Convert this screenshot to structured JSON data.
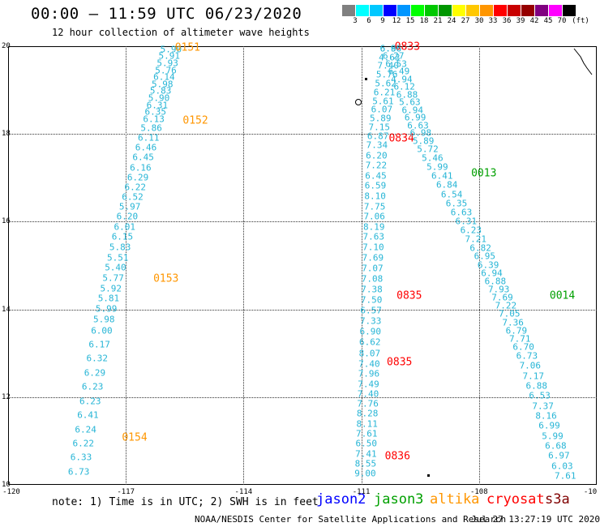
{
  "title": "00:00 – 11:59 UTC 06/23/2020",
  "subtitle": "12 hour collection of altimeter wave heights",
  "legend": {
    "unit": "(ft)",
    "colors": [
      "#808080",
      "#00ffff",
      "#00c8ff",
      "#0000ff",
      "#0096ff",
      "#00ff00",
      "#00c800",
      "#009600",
      "#ffff00",
      "#ffc800",
      "#ff9600",
      "#ff0000",
      "#c80000",
      "#960000",
      "#800080",
      "#ff00ff",
      "#000000"
    ],
    "labels": [
      "3",
      "6",
      "9",
      "12",
      "15",
      "18",
      "21",
      "24",
      "27",
      "30",
      "33",
      "36",
      "39",
      "42",
      "45",
      "70"
    ]
  },
  "y_ticks": [
    "20",
    "18",
    "16",
    "14",
    "12",
    "10"
  ],
  "x_ticks": [
    "-120",
    "-117",
    "-114",
    "-111",
    "-108",
    "-10"
  ],
  "note": "note: 1) Time is in UTC; 2) SWH is in feet",
  "satellites": [
    {
      "name": "jason2",
      "color": "#0000ff"
    },
    {
      "name": "jason3",
      "color": "#00a000"
    },
    {
      "name": "altika",
      "color": "#ff9600"
    },
    {
      "name": "cryosat",
      "color": "#ff0000"
    },
    {
      "name": "s3a",
      "color": "#800000"
    }
  ],
  "credit": "NOAA/NESDIS Center for Satellite Applications and Research",
  "timestamp": "Jul 27 13:27:19 UTC 2020",
  "tracks": [
    {
      "name": "altika-track",
      "time_labels": [
        {
          "text": "0151",
          "color": "#ff9600",
          "lon": -115.75,
          "lat": 19.97
        },
        {
          "text": "0152",
          "color": "#ff9600",
          "lon": -115.55,
          "lat": 18.3
        },
        {
          "text": "0153",
          "color": "#ff9600",
          "lon": -116.3,
          "lat": 14.7
        },
        {
          "text": "0154",
          "color": "#ff9600",
          "lon": -117.1,
          "lat": 11.08
        }
      ],
      "values": [
        "5.90",
        "5.91",
        "5.93",
        "5.76",
        "6.14",
        "5.98",
        "5.83",
        "5.90",
        "6.31",
        "6.35",
        "6.13",
        "5.86",
        "6.11",
        "6.46",
        "6.45",
        "6.16",
        "6.29",
        "6.22",
        "6.52",
        "5.97",
        "6.20",
        "6.01",
        "6.15",
        "5.83",
        "5.51",
        "5.40",
        "5.77",
        "5.92",
        "5.81",
        "5.99",
        "5.98",
        "6.00",
        "6.17",
        "6.32",
        "6.29",
        "6.23",
        "6.23",
        "6.41",
        "6.24",
        "6.22",
        "6.33",
        "6.73"
      ]
    },
    {
      "name": "cryosat-track",
      "time_labels": [
        {
          "text": "0833",
          "color": "#ff0000",
          "lon": -110.15,
          "lat": 19.98
        },
        {
          "text": "0834",
          "color": "#ff0000",
          "lon": -110.3,
          "lat": 17.9
        },
        {
          "text": "0835",
          "color": "#ff0000",
          "lon": -110.1,
          "lat": 14.3
        },
        {
          "text": "0835",
          "color": "#ff0000",
          "lon": -110.35,
          "lat": 12.8
        },
        {
          "text": "0836",
          "color": "#ff0000",
          "lon": -110.4,
          "lat": 10.65
        }
      ],
      "values": [
        "6.86",
        "4.63",
        "7.40",
        "5.76",
        "5.62",
        "6.21",
        "5.61",
        "6.07",
        "5.89",
        "7.15",
        "6.87",
        "7.34",
        "6.20",
        "7.22",
        "6.45",
        "6.59",
        "8.10",
        "7.75",
        "7.06",
        "8.19",
        "7.63",
        "7.10",
        "7.69",
        "7.07",
        "7.08",
        "7.38",
        "7.50",
        "6.57",
        "7.33",
        "6.90",
        "6.62",
        "8.07",
        "7.40",
        "7.96",
        "7.49",
        "7.40",
        "7.76",
        "8.28",
        "8.11",
        "7.61",
        "6.50",
        "7.41",
        "8.55",
        "9.00"
      ]
    },
    {
      "name": "jason3-track",
      "time_labels": [
        {
          "text": "0013",
          "color": "#00a000",
          "lon": -108.2,
          "lat": 17.1
        },
        {
          "text": "0014",
          "color": "#00a000",
          "lon": -106.2,
          "lat": 14.3
        },
        {
          "text": "0015",
          "color": "#00a000",
          "lon": -104.9,
          "lat": 11.25
        }
      ],
      "values": [
        "6.96",
        "6.27",
        "6.53",
        "6.49",
        "4.94",
        "6.12",
        "6.88",
        "5.63",
        "6.94",
        "6.99",
        "6.63",
        "6.98",
        "5.89",
        "5.72",
        "5.46",
        "5.99",
        "6.41",
        "6.84",
        "6.54",
        "6.35",
        "6.63",
        "6.31",
        "6.23",
        "7.21",
        "6.82",
        "6.95",
        "6.39",
        "6.94",
        "6.88",
        "7.93",
        "7.69",
        "7.22",
        "7.05",
        "7.36",
        "6.79",
        "7.71",
        "6.70",
        "6.73",
        "7.06",
        "7.17",
        "6.88",
        "6.53",
        "7.37",
        "8.16",
        "6.99",
        "5.99",
        "6.68",
        "6.97",
        "6.03",
        "7.61"
      ]
    }
  ]
}
